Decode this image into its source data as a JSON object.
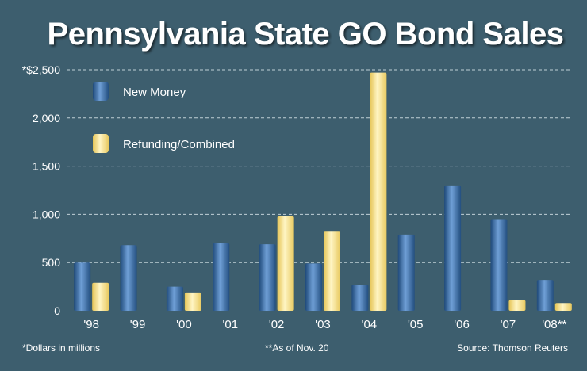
{
  "chart_data": {
    "type": "bar",
    "title": "Pennsylvania State GO Bond Sales",
    "categories": [
      "'98",
      "'99",
      "'00",
      "'01",
      "'02",
      "'03",
      "'04",
      "'05",
      "'06",
      "'07",
      "'08**"
    ],
    "series": [
      {
        "name": "New Money",
        "color": "#3a6ea8",
        "values": [
          500,
          680,
          250,
          700,
          690,
          490,
          270,
          790,
          1300,
          950,
          320
        ]
      },
      {
        "name": "Refunding/Combined",
        "color": "#f7dc7a",
        "values": [
          290,
          0,
          190,
          0,
          980,
          820,
          2470,
          0,
          0,
          110,
          80
        ]
      }
    ],
    "ylim": [
      0,
      2500
    ],
    "yticks": [
      0,
      500,
      1000,
      1500,
      2000,
      2500
    ],
    "ytick_labels": [
      "0",
      "500",
      "1,000",
      "1,500",
      "2,000",
      "*$2,500"
    ],
    "grid": true,
    "legend_position": "top-left",
    "footnotes": {
      "units": "*Dollars in millions",
      "asof": "**As of Nov. 20",
      "source": "Source: Thomson Reuters"
    }
  }
}
